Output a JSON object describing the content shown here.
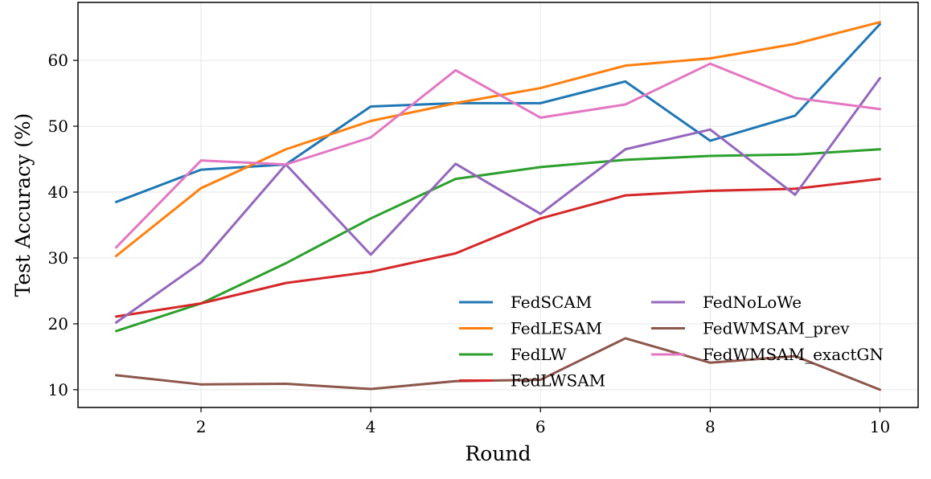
{
  "chart_data": {
    "type": "line",
    "title": "",
    "xlabel": "Round",
    "ylabel": "Test Accuracy (%)",
    "x": [
      1,
      2,
      3,
      4,
      5,
      6,
      7,
      8,
      9,
      10
    ],
    "xlim": [
      0.55,
      10.45
    ],
    "ylim": [
      7.3,
      68.8
    ],
    "xticks": [
      2,
      4,
      6,
      8,
      10
    ],
    "yticks": [
      10,
      20,
      30,
      40,
      50,
      60
    ],
    "grid": true,
    "legend_position": "lower-right",
    "legend_columns": 2,
    "series": [
      {
        "name": "FedSCAM",
        "color": "#1f77b4",
        "values": [
          38.5,
          43.4,
          44.2,
          53.0,
          53.5,
          53.5,
          56.8,
          47.8,
          51.6,
          65.5
        ]
      },
      {
        "name": "FedLESAM",
        "color": "#ff7f0e",
        "values": [
          30.3,
          40.6,
          46.5,
          50.8,
          53.5,
          55.8,
          59.2,
          60.3,
          62.5,
          65.8
        ]
      },
      {
        "name": "FedLW",
        "color": "#2ca02c",
        "values": [
          18.9,
          23.1,
          29.2,
          36.0,
          42.0,
          43.8,
          44.9,
          45.5,
          45.7,
          46.5
        ]
      },
      {
        "name": "FedLWSAM",
        "color": "#d62728",
        "values": [
          21.1,
          23.1,
          26.2,
          27.9,
          30.7,
          36.0,
          39.5,
          40.2,
          40.5,
          42.0
        ]
      },
      {
        "name": "FedNoLoWe",
        "color": "#9467bd",
        "values": [
          20.2,
          29.3,
          44.2,
          30.5,
          44.3,
          36.7,
          46.5,
          49.5,
          39.6,
          57.3
        ]
      },
      {
        "name": "FedWMSAM_prev",
        "color": "#8c564b",
        "values": [
          12.2,
          10.8,
          10.9,
          10.1,
          11.3,
          11.5,
          17.8,
          14.1,
          15.1,
          10.0
        ]
      },
      {
        "name": "FedWMSAM_exactGN",
        "color": "#e377c2",
        "values": [
          31.6,
          44.8,
          44.2,
          48.3,
          58.5,
          51.3,
          53.3,
          59.5,
          54.3,
          52.6
        ]
      }
    ]
  }
}
